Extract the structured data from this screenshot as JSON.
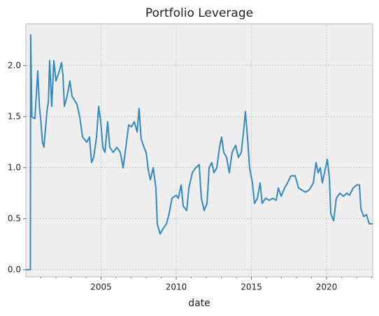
{
  "chart_data": {
    "type": "line",
    "title": "Portfolio Leverage",
    "x_label": "date",
    "xlim": [
      2000,
      2023.07
    ],
    "ylim": [
      -0.07,
      2.41
    ],
    "xticks": [
      2005,
      2010,
      2015,
      2020
    ],
    "xminorticks": [
      2001,
      2002,
      2003,
      2004,
      2006,
      2007,
      2008,
      2009,
      2011,
      2012,
      2013,
      2014,
      2016,
      2017,
      2018,
      2019,
      2021,
      2022,
      2023
    ],
    "yticks": [
      {
        "value": 0,
        "label": "0.0"
      },
      0.5,
      {
        "value": 1,
        "label": "1.0"
      },
      1.5,
      {
        "value": 2,
        "label": "2.0"
      }
    ],
    "grid": true,
    "x": [
      2000.0,
      2000.3,
      2000.32,
      2000.4,
      2000.6,
      2000.79,
      2000.9,
      2001.0,
      2001.1,
      2001.2,
      2001.4,
      2001.5,
      2001.58,
      2001.72,
      2001.86,
      2002.0,
      2002.23,
      2002.37,
      2002.47,
      2002.56,
      2002.74,
      2002.93,
      2003.07,
      2003.4,
      2003.58,
      2003.77,
      2004.05,
      2004.23,
      2004.37,
      2004.51,
      2004.7,
      2004.84,
      2004.98,
      2005.12,
      2005.26,
      2005.44,
      2005.58,
      2005.81,
      2006.05,
      2006.28,
      2006.47,
      2006.65,
      2006.84,
      2007.02,
      2007.21,
      2007.4,
      2007.53,
      2007.67,
      2007.86,
      2008.0,
      2008.14,
      2008.28,
      2008.47,
      2008.65,
      2008.74,
      2008.93,
      2009.12,
      2009.35,
      2009.53,
      2009.72,
      2010.0,
      2010.14,
      2010.33,
      2010.47,
      2010.7,
      2010.84,
      2011.07,
      2011.3,
      2011.53,
      2011.67,
      2011.86,
      2012.05,
      2012.19,
      2012.37,
      2012.51,
      2012.7,
      2012.88,
      2013.02,
      2013.16,
      2013.35,
      2013.53,
      2013.72,
      2013.95,
      2014.14,
      2014.33,
      2014.51,
      2014.6,
      2014.74,
      2014.88,
      2015.07,
      2015.21,
      2015.4,
      2015.58,
      2015.72,
      2015.95,
      2016.19,
      2016.42,
      2016.65,
      2016.79,
      2016.98,
      2017.21,
      2017.4,
      2017.63,
      2017.91,
      2018.14,
      2018.37,
      2018.6,
      2018.84,
      2019.12,
      2019.3,
      2019.44,
      2019.58,
      2019.72,
      2019.86,
      2020.05,
      2020.19,
      2020.28,
      2020.47,
      2020.65,
      2020.88,
      2021.12,
      2021.35,
      2021.53,
      2021.77,
      2022.0,
      2022.19,
      2022.28,
      2022.47,
      2022.65,
      2022.84,
      2023.07
    ],
    "series": [
      {
        "color": "#348abd",
        "values": [
          0,
          0,
          2.3,
          1.5,
          1.48,
          1.95,
          1.6,
          1.45,
          1.25,
          1.2,
          1.55,
          1.65,
          2.05,
          1.6,
          2.05,
          1.85,
          1.95,
          2.03,
          1.9,
          1.6,
          1.7,
          1.85,
          1.7,
          1.62,
          1.5,
          1.3,
          1.25,
          1.3,
          1.05,
          1.1,
          1.3,
          1.6,
          1.45,
          1.2,
          1.15,
          1.45,
          1.2,
          1.15,
          1.2,
          1.15,
          1.0,
          1.2,
          1.42,
          1.4,
          1.45,
          1.35,
          1.58,
          1.28,
          1.2,
          1.15,
          0.98,
          0.88,
          1.0,
          0.8,
          0.45,
          0.35,
          0.4,
          0.45,
          0.55,
          0.7,
          0.73,
          0.7,
          0.83,
          0.62,
          0.58,
          0.8,
          0.95,
          1.0,
          1.03,
          0.7,
          0.58,
          0.65,
          1.0,
          1.05,
          0.95,
          1.0,
          1.2,
          1.3,
          1.15,
          1.1,
          0.95,
          1.15,
          1.22,
          1.1,
          1.15,
          1.4,
          1.55,
          1.3,
          1.0,
          0.85,
          0.65,
          0.7,
          0.85,
          0.65,
          0.7,
          0.68,
          0.7,
          0.68,
          0.8,
          0.72,
          0.8,
          0.85,
          0.92,
          0.92,
          0.8,
          0.78,
          0.76,
          0.78,
          0.85,
          1.05,
          0.95,
          1.0,
          0.85,
          0.95,
          1.08,
          0.9,
          0.55,
          0.48,
          0.7,
          0.75,
          0.72,
          0.75,
          0.73,
          0.8,
          0.83,
          0.83,
          0.6,
          0.52,
          0.54,
          0.45,
          0.45
        ]
      }
    ]
  }
}
